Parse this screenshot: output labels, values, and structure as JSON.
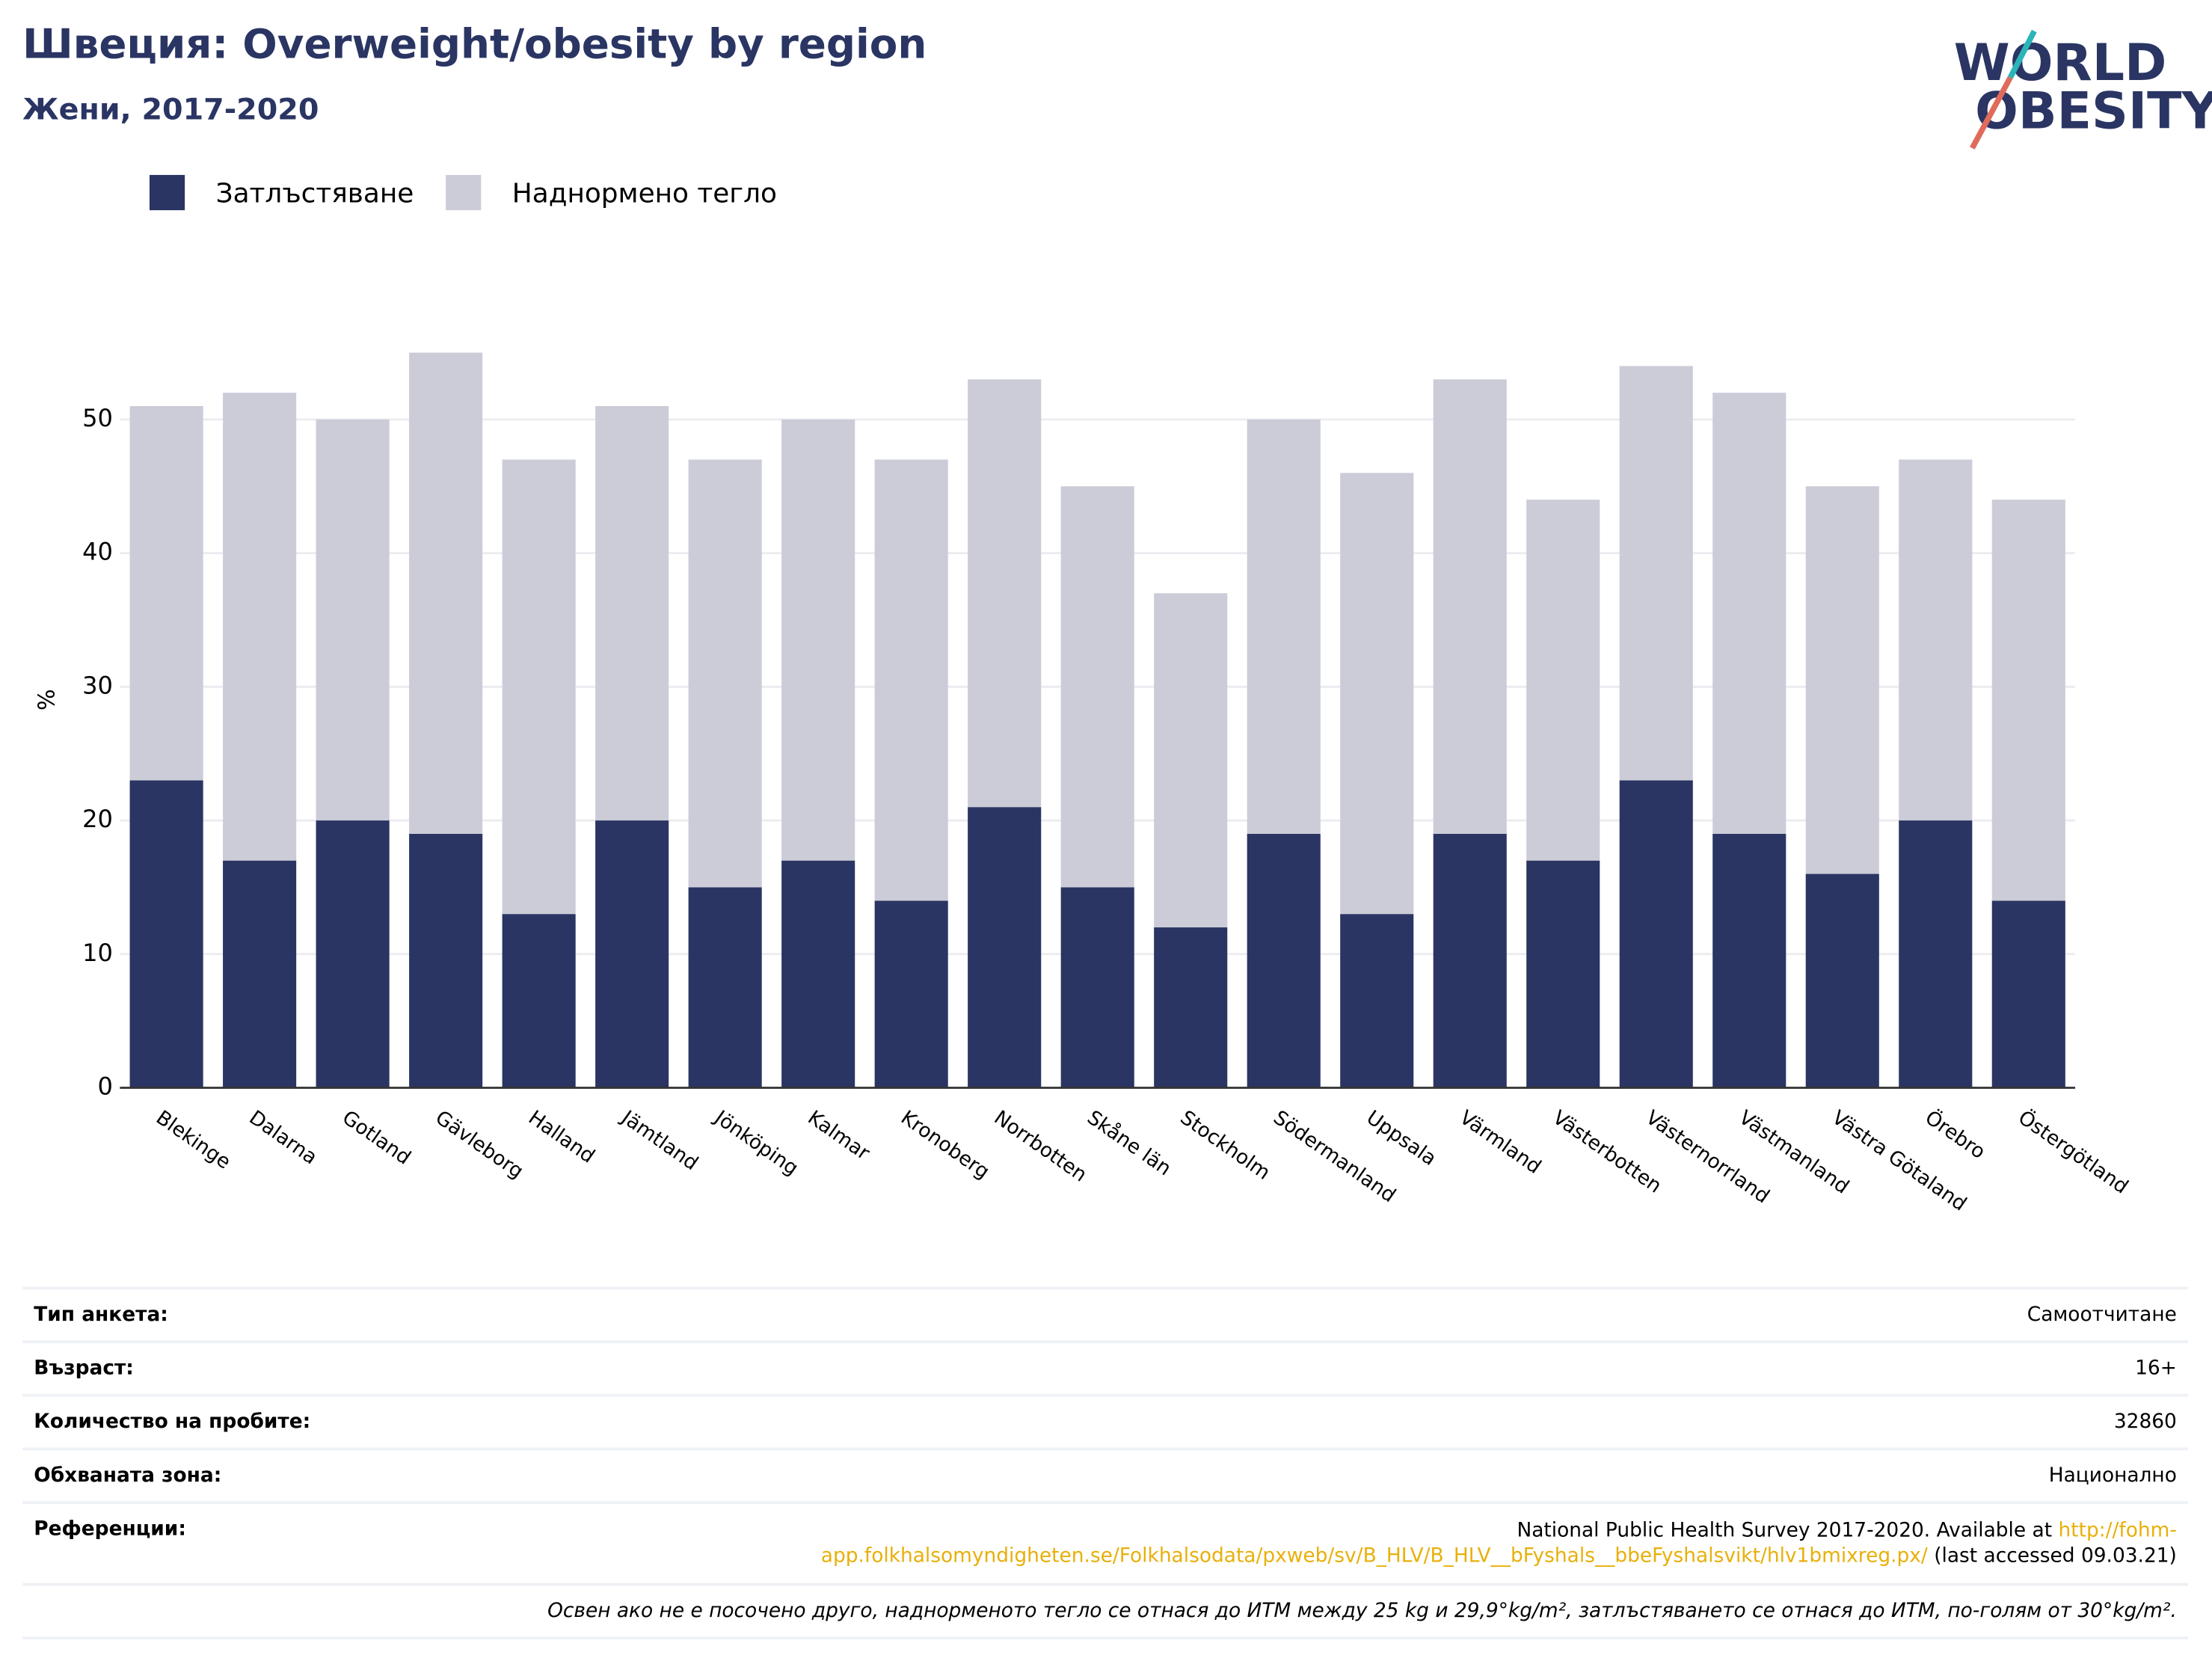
{
  "chart_data": {
    "type": "stacked_bar",
    "title": "Швеция: Overweight/obesity by region",
    "subtitle": "Жени, 2017-2020",
    "y_label": "%",
    "categories": [
      "Blekinge",
      "Dalarna",
      "Gotland",
      "Gävleborg",
      "Halland",
      "Jämtland",
      "Jönköping",
      "Kalmar",
      "Kronoberg",
      "Norrbotten",
      "Skåne län",
      "Stockholm",
      "Södermanland",
      "Uppsala",
      "Värmland",
      "Västerbotten",
      "Västernorrland",
      "Västmanland",
      "Västra Götaland",
      "Örebro",
      "Östergötland"
    ],
    "series": [
      {
        "name": "Затлъстяване",
        "color": "#2a3563",
        "values": [
          23,
          17,
          20,
          19,
          13,
          20,
          15,
          17,
          14,
          21,
          15,
          12,
          19,
          13,
          19,
          17,
          23,
          19,
          16,
          20,
          14
        ]
      },
      {
        "name": "Наднормено тегло",
        "color": "#cbccd8",
        "values": [
          28,
          35,
          30,
          36,
          34,
          31,
          32,
          33,
          33,
          32,
          30,
          25,
          31,
          33,
          34,
          27,
          31,
          33,
          29,
          27,
          30
        ]
      }
    ],
    "ylim": [
      0,
      57
    ],
    "yticks": [
      0,
      10,
      20,
      30,
      40,
      50
    ],
    "grid": true,
    "legend": "top-left"
  },
  "logo": {
    "line1": "WORLD",
    "line2": "OBESITY"
  },
  "info": {
    "rows": [
      {
        "label": "Тип анкета:",
        "value": "Самоотчитане"
      },
      {
        "label": "Възраст:",
        "value": "16+"
      },
      {
        "label": "Количество на пробите:",
        "value": "32860"
      },
      {
        "label": "Обхваната зона:",
        "value": "Национално"
      }
    ],
    "references": {
      "label": "Референции:",
      "text": "National Public Health Survey 2017-2020. Available at ",
      "link": "http://fohm-app.folkhalsomyndigheten.se/Folkhalsodata/pxweb/sv/B_HLV/B_HLV__bFyshals__bbeFyshalsvikt/hlv1bmixreg.px/",
      "suffix": " (last accessed 09.03.21)"
    },
    "note": "Освен ако не е посочено друго, наднорменото тегло се отнася до ИТМ между 25 kg и 29,9°kg/m², затлъстяването се отнася до ИТМ, по-голям от 30°kg/m²."
  }
}
